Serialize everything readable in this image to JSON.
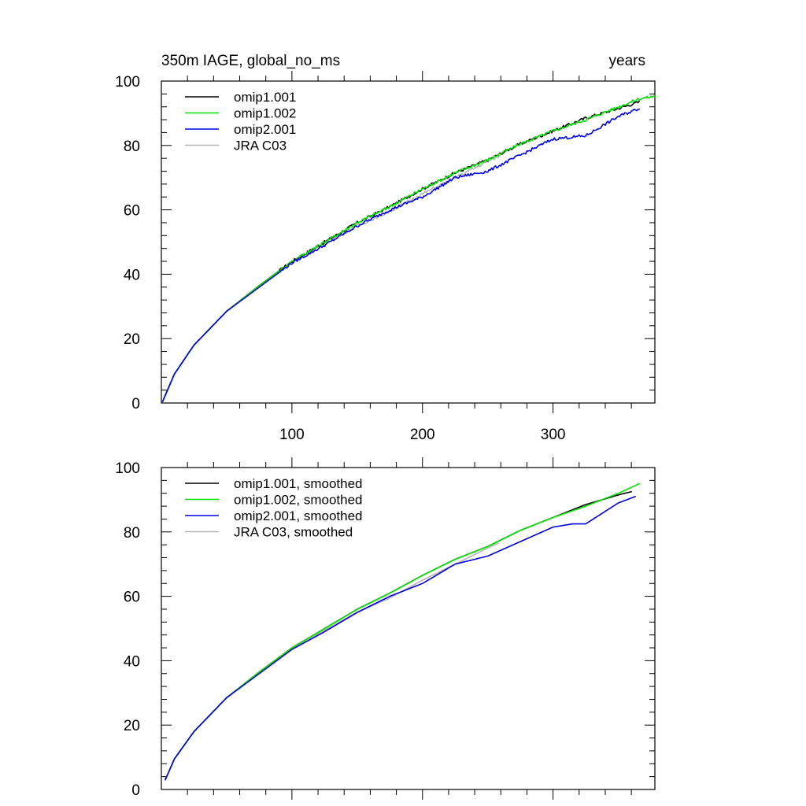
{
  "title_left": "350m IAGE, global_no_ms",
  "title_right": "years",
  "chart_data": [
    {
      "type": "line",
      "xlim": [
        0,
        378
      ],
      "ylim": [
        0,
        100
      ],
      "x_ticks": [
        100,
        200,
        300
      ],
      "x_tick_labels": [
        "100",
        "200",
        "300"
      ],
      "y_ticks": [
        0,
        20,
        40,
        60,
        80,
        100
      ],
      "y_tick_labels": [
        "0",
        "20",
        "40",
        "60",
        "80",
        "100"
      ],
      "legend_position": "top-left",
      "noise": true,
      "series": [
        {
          "name": "omip1.001",
          "color": "#000000",
          "x": [
            1,
            10,
            25,
            50,
            75,
            100,
            125,
            150,
            175,
            200,
            225,
            250,
            275,
            300,
            325,
            350,
            366
          ],
          "y": [
            0.5,
            9,
            18,
            28.5,
            36.5,
            44,
            50,
            56,
            61,
            66.5,
            71.5,
            75.5,
            80.5,
            84.5,
            88.5,
            91.5,
            93.5
          ]
        },
        {
          "name": "omip1.002",
          "color": "#00e600",
          "x": [
            1,
            10,
            25,
            50,
            75,
            100,
            125,
            150,
            175,
            200,
            225,
            250,
            275,
            300,
            325,
            350,
            366,
            378
          ],
          "y": [
            0.5,
            9,
            18,
            28.5,
            36.5,
            44,
            50,
            56,
            61,
            66.5,
            71.5,
            75.5,
            80.5,
            84.5,
            88,
            92,
            94.5,
            95.3
          ]
        },
        {
          "name": "omip2.001",
          "color": "#0000e6",
          "x": [
            1,
            10,
            25,
            50,
            75,
            100,
            125,
            150,
            175,
            200,
            225,
            250,
            275,
            300,
            325,
            350,
            366
          ],
          "y": [
            0.5,
            9,
            18,
            28.5,
            36,
            43.5,
            49,
            55,
            60,
            64,
            70,
            72,
            77,
            82,
            83,
            89,
            91.5
          ]
        },
        {
          "name": "JRA C03",
          "color": "#b4b4b4",
          "x": [
            1,
            10,
            25,
            50,
            75,
            100,
            125,
            150,
            175,
            200,
            225,
            250,
            260
          ],
          "y": [
            0.5,
            9,
            18,
            28.5,
            36.5,
            43.5,
            49.5,
            55,
            59.5,
            65,
            70,
            75,
            77
          ]
        }
      ]
    },
    {
      "type": "line",
      "xlim": [
        0,
        378
      ],
      "ylim": [
        0,
        100
      ],
      "x_ticks": [
        100,
        200,
        300
      ],
      "x_tick_labels": [],
      "y_ticks": [
        0,
        20,
        40,
        60,
        80,
        100
      ],
      "y_tick_labels": [
        "0",
        "20",
        "40",
        "60",
        "80",
        "100"
      ],
      "legend_position": "top-left",
      "noise": false,
      "series": [
        {
          "name": "omip1.001, smoothed",
          "color": "#000000",
          "x": [
            3,
            10,
            25,
            50,
            75,
            100,
            125,
            150,
            175,
            200,
            225,
            250,
            275,
            300,
            325,
            350,
            360
          ],
          "y": [
            3,
            9.5,
            18,
            28.5,
            36.5,
            44,
            50,
            56,
            61,
            66.5,
            71.5,
            75.5,
            80.5,
            84.5,
            88.5,
            91.5,
            92.5
          ]
        },
        {
          "name": "omip1.002, smoothed",
          "color": "#00e600",
          "x": [
            3,
            10,
            25,
            50,
            75,
            100,
            125,
            150,
            175,
            200,
            225,
            250,
            275,
            300,
            325,
            350,
            366
          ],
          "y": [
            3,
            9.5,
            18,
            28.5,
            36.5,
            44,
            50,
            56,
            61,
            66.5,
            71.5,
            75.5,
            80.5,
            84.5,
            88,
            92,
            95
          ]
        },
        {
          "name": "omip2.001, smoothed",
          "color": "#0000e6",
          "x": [
            3,
            10,
            25,
            50,
            75,
            100,
            125,
            150,
            175,
            200,
            225,
            250,
            275,
            300,
            315,
            325,
            350,
            363
          ],
          "y": [
            3,
            9.5,
            18,
            28.5,
            36,
            43.5,
            49,
            55,
            60,
            64,
            70,
            72.5,
            77,
            81.5,
            82.5,
            82.5,
            89,
            91
          ]
        },
        {
          "name": "JRA C03, smoothed",
          "color": "#b4b4b4",
          "x": [
            3,
            10,
            25,
            50,
            75,
            100,
            125,
            150,
            175,
            200,
            225,
            250,
            258
          ],
          "y": [
            3,
            9.5,
            18,
            28.5,
            36.5,
            43.5,
            49.5,
            55,
            59.5,
            65,
            70,
            75,
            76.5
          ]
        }
      ]
    }
  ]
}
